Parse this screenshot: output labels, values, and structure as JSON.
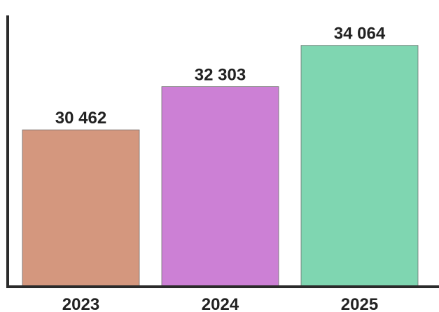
{
  "chart_data": {
    "type": "bar",
    "title": "",
    "xlabel": "",
    "ylabel": "",
    "categories": [
      "2023",
      "2024",
      "2025"
    ],
    "values": [
      30462,
      32303,
      34064
    ],
    "value_labels": [
      "30 462",
      "32 303",
      "34 064"
    ],
    "colors": [
      "#d4977e",
      "#cc80d5",
      "#7fd6b1"
    ],
    "ylim": [
      23800,
      35400
    ],
    "grid": false,
    "legend": "none"
  }
}
